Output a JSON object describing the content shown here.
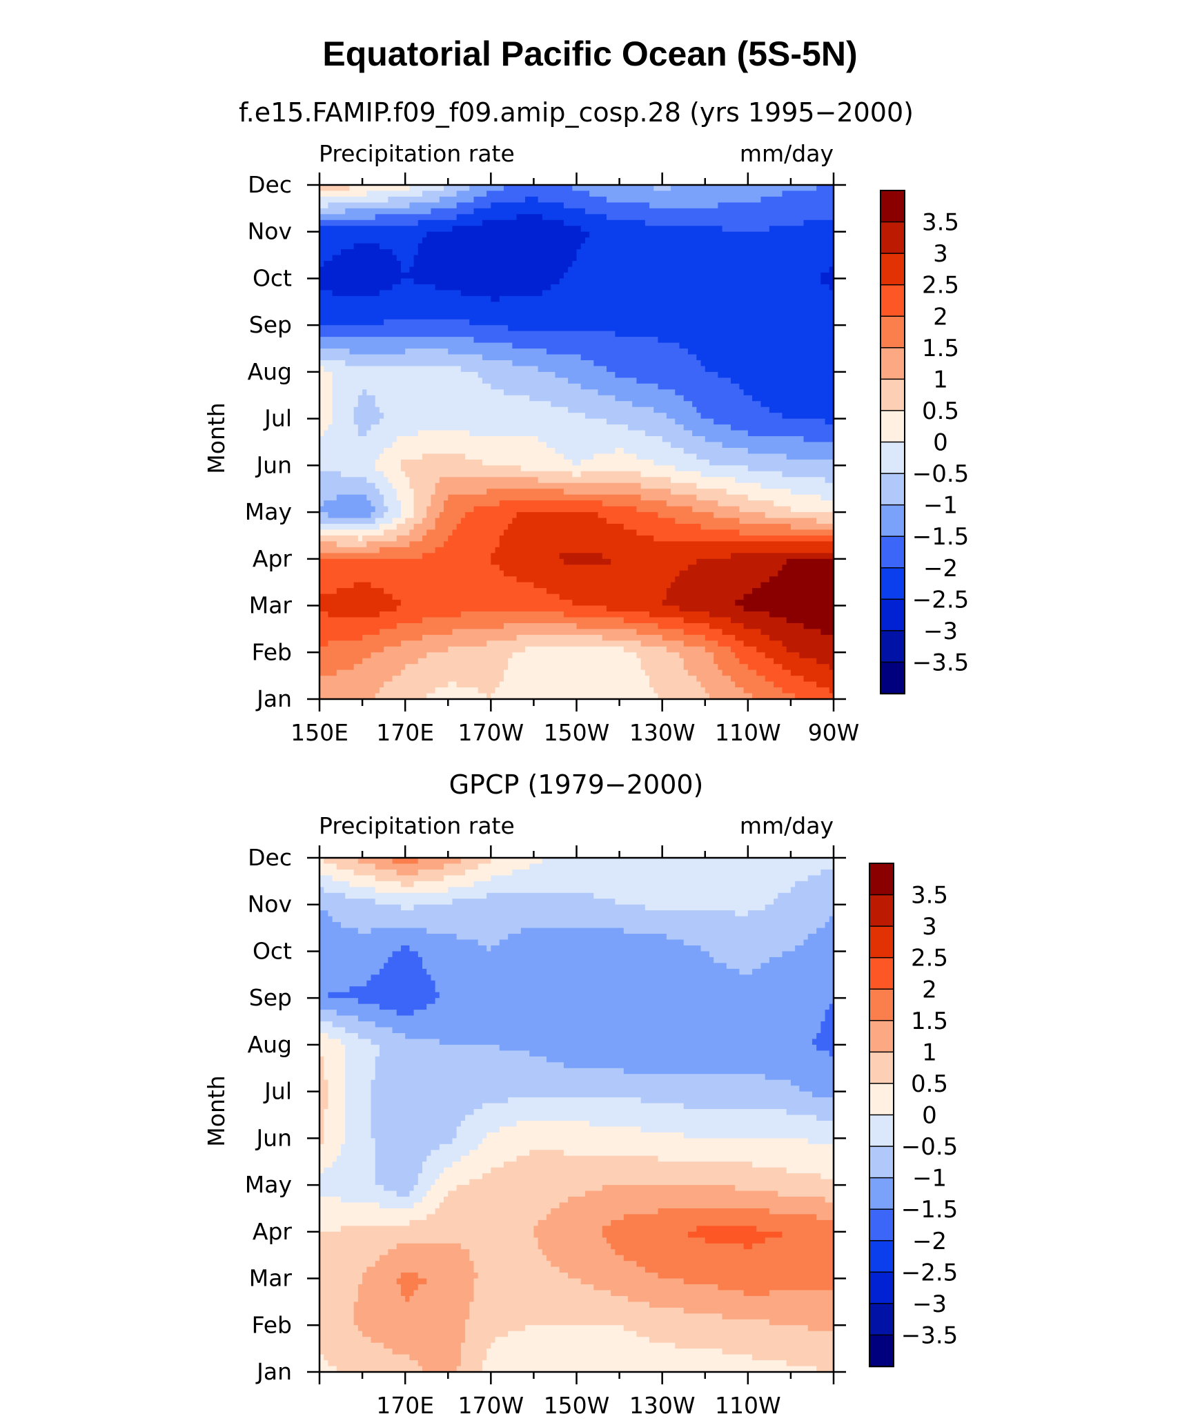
{
  "title": "Equatorial Pacific Ocean (5S-5N)",
  "colors": [
    "#00007f",
    "#0013a6",
    "#0022d2",
    "#0b3eec",
    "#3c66f8",
    "#7aa2fa",
    "#b1c9fa",
    "#dbe8fb",
    "#fff0e2",
    "#fdcfb5",
    "#fca882",
    "#fb7f4d",
    "#fc5724",
    "#e23204",
    "#bd1a02",
    "#8a0000"
  ],
  "levels": [
    "3.5",
    "3",
    "2.5",
    "2",
    "1.5",
    "1",
    "0.5",
    "0",
    "−0.5",
    "−1",
    "−1.5",
    "−2",
    "−2.5",
    "−3",
    "−3.5"
  ],
  "months": [
    "Jan",
    "Feb",
    "Mar",
    "Apr",
    "May",
    "Jun",
    "Jul",
    "Aug",
    "Sep",
    "Oct",
    "Nov",
    "Dec"
  ],
  "chart_data": [
    {
      "type": "heatmap",
      "subtitle": "f.e15.FAMIP.f09_f09.amip_cosp.28 (yrs 1995−2000)",
      "left_label": "Precipitation rate",
      "right_label": "mm/day",
      "ylabel": "Month",
      "x_ticklabels": [
        "150E",
        "170E",
        "170W",
        "150W",
        "130W",
        "110W",
        "90W"
      ],
      "lon_grid": [
        150,
        160,
        170,
        180,
        190,
        200,
        210,
        220,
        230,
        240,
        250,
        260,
        270
      ],
      "z": [
        [
          1.2,
          1.1,
          0.6,
          0.3,
          0.5,
          0.2,
          0.1,
          0.2,
          0.5,
          0.9,
          1.4,
          1.9,
          2.4
        ],
        [
          1.9,
          1.6,
          1.2,
          0.9,
          0.7,
          0.3,
          0.2,
          0.3,
          0.8,
          1.4,
          2.3,
          3.0,
          3.3
        ],
        [
          2.6,
          2.9,
          2.5,
          2.3,
          2.2,
          2.2,
          2.5,
          2.7,
          3.0,
          3.3,
          3.6,
          3.8,
          3.9
        ],
        [
          2.0,
          2.1,
          2.0,
          2.2,
          2.5,
          2.9,
          3.1,
          3.0,
          2.9,
          3.0,
          3.2,
          3.5,
          3.6
        ],
        [
          -1.1,
          -1.6,
          0.1,
          1.8,
          2.3,
          2.6,
          2.6,
          2.3,
          1.9,
          1.5,
          1.0,
          0.6,
          0.3
        ],
        [
          -0.4,
          -0.2,
          0.6,
          0.8,
          0.5,
          0.3,
          0.0,
          0.3,
          0.0,
          -0.4,
          -0.6,
          -0.8,
          -0.9
        ],
        [
          0.3,
          -0.7,
          -0.3,
          -0.3,
          -0.3,
          -0.2,
          -0.4,
          -0.6,
          -0.9,
          -1.5,
          -1.9,
          -2.0,
          -2.1
        ],
        [
          0.2,
          -0.4,
          -0.3,
          -0.3,
          -0.6,
          -0.9,
          -1.2,
          -1.6,
          -1.8,
          -2.0,
          -2.1,
          -2.3,
          -2.3
        ],
        [
          -2.1,
          -2.0,
          -1.9,
          -1.9,
          -2.0,
          -2.2,
          -2.1,
          -2.1,
          -2.1,
          -2.1,
          -2.3,
          -2.3,
          -2.2
        ],
        [
          -2.6,
          -2.9,
          -2.5,
          -2.7,
          -2.9,
          -2.7,
          -2.4,
          -2.2,
          -2.1,
          -2.0,
          -2.2,
          -2.3,
          -2.6
        ],
        [
          -2.2,
          -2.4,
          -2.4,
          -2.6,
          -2.9,
          -3.0,
          -2.6,
          -2.3,
          -2.2,
          -2.1,
          -2.0,
          -2.1,
          -2.2
        ],
        [
          0.9,
          0.6,
          0.2,
          -0.4,
          -1.3,
          -1.6,
          -1.4,
          -1.0,
          -0.9,
          -1.0,
          -1.2,
          -1.4,
          -1.5
        ]
      ]
    },
    {
      "type": "heatmap",
      "subtitle": "GPCP (1979−2000)",
      "left_label": "Precipitation rate",
      "right_label": "mm/day",
      "ylabel": "Month",
      "x_ticklabels": [
        "170E",
        "170W",
        "150W",
        "130W",
        "110W"
      ],
      "lon_grid": [
        150,
        160,
        170,
        180,
        190,
        200,
        210,
        220,
        230,
        240,
        250,
        260,
        270
      ],
      "z": [
        [
          0.4,
          0.6,
          0.8,
          1.2,
          0.3,
          0.2,
          0.1,
          0.1,
          0.2,
          0.2,
          0.3,
          0.4,
          0.5
        ],
        [
          0.6,
          1.1,
          1.4,
          1.3,
          0.6,
          0.5,
          0.5,
          0.5,
          0.7,
          0.8,
          0.9,
          1.0,
          1.1
        ],
        [
          0.8,
          1.0,
          1.6,
          1.4,
          0.8,
          0.9,
          1.0,
          1.3,
          1.5,
          1.6,
          1.8,
          1.7,
          1.6
        ],
        [
          0.5,
          0.6,
          0.8,
          0.9,
          0.9,
          1.0,
          1.3,
          1.7,
          1.9,
          2.1,
          2.1,
          2.0,
          1.8
        ],
        [
          -0.2,
          -0.3,
          -0.9,
          0.4,
          0.7,
          0.8,
          0.9,
          1.0,
          1.0,
          1.0,
          0.9,
          0.7,
          0.6
        ],
        [
          0.6,
          -0.4,
          -0.8,
          -0.6,
          0.1,
          0.4,
          0.3,
          0.2,
          0.1,
          0.0,
          0.0,
          0.0,
          -0.1
        ],
        [
          0.7,
          -0.4,
          -0.9,
          -0.8,
          -0.7,
          -0.6,
          -0.6,
          -0.6,
          -0.7,
          -0.8,
          -0.8,
          -0.9,
          -1.2
        ],
        [
          0.5,
          -0.3,
          -0.8,
          -1.0,
          -1.0,
          -1.1,
          -1.4,
          -1.5,
          -1.5,
          -1.4,
          -1.3,
          -1.4,
          -1.6
        ],
        [
          -1.5,
          -1.6,
          -1.9,
          -1.4,
          -1.0,
          -1.2,
          -1.3,
          -1.3,
          -1.2,
          -1.1,
          -1.1,
          -1.3,
          -1.5
        ],
        [
          -1.2,
          -1.2,
          -1.6,
          -1.2,
          -1.0,
          -1.3,
          -1.4,
          -1.4,
          -1.3,
          -1.0,
          -0.9,
          -1.0,
          -1.3
        ],
        [
          -1.0,
          -0.7,
          -0.4,
          -0.6,
          -0.8,
          -0.7,
          -0.6,
          -0.5,
          -0.4,
          -0.4,
          -0.4,
          -0.6,
          -0.9
        ],
        [
          0.5,
          1.2,
          1.8,
          1.3,
          0.6,
          0.1,
          -0.2,
          -0.3,
          -0.3,
          -0.3,
          -0.3,
          -0.3,
          -0.4
        ]
      ]
    }
  ]
}
